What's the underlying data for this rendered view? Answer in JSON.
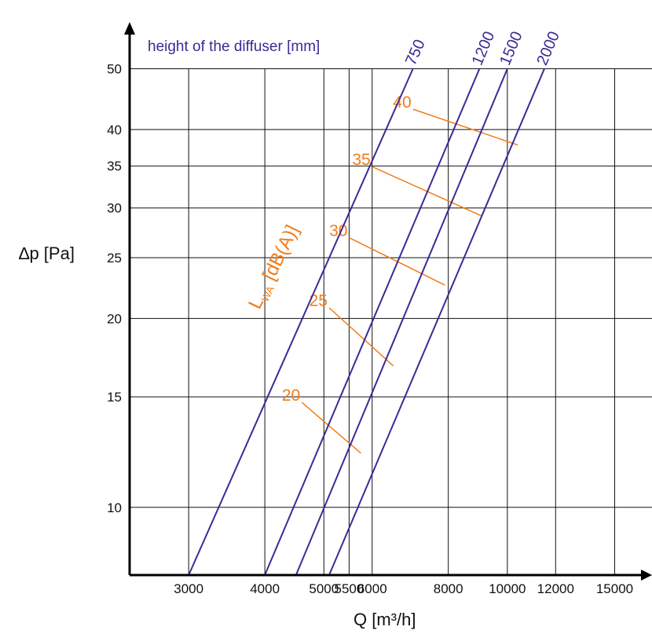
{
  "chart_data": {
    "type": "line",
    "xlabel": "Q [m³/h]",
    "ylabel": "∆p [Pa]",
    "legend_title": "height of the diffuser [mm]",
    "x_scale": "log",
    "y_scale": "log",
    "x_ticks": [
      3000,
      4000,
      5000,
      5500,
      6000,
      8000,
      10000,
      12000,
      15000
    ],
    "x_tick_labels": [
      "3000",
      "4000",
      "5000",
      "5500",
      "6000",
      "8000",
      "10000",
      "12000",
      "15000"
    ],
    "y_ticks": [
      10,
      15,
      20,
      25,
      30,
      35,
      40,
      50
    ],
    "y_tick_labels": [
      "10",
      "15",
      "20",
      "25",
      "30",
      "35",
      "40",
      "50"
    ],
    "xlim": [
      2400,
      15800
    ],
    "ylim": [
      7.8,
      58
    ],
    "grid": true,
    "series": [
      {
        "name": "750",
        "points": [
          [
            3000,
            7.8
          ],
          [
            7000,
            50
          ]
        ]
      },
      {
        "name": "1200",
        "points": [
          [
            4000,
            7.8
          ],
          [
            9000,
            50
          ]
        ]
      },
      {
        "name": "1500",
        "points": [
          [
            4500,
            7.8
          ],
          [
            10000,
            50
          ]
        ]
      },
      {
        "name": "2000",
        "points": [
          [
            5100,
            7.8
          ],
          [
            11500,
            50
          ]
        ]
      }
    ],
    "noise_title_main": "L",
    "noise_title_sub": "WA",
    "noise_title_unit": " [dB(A)]",
    "noise_lines": [
      {
        "label": "20",
        "points": [
          [
            4600,
            14.7
          ],
          [
            5750,
            12.2
          ]
        ]
      },
      {
        "label": "25",
        "points": [
          [
            5100,
            20.8
          ],
          [
            6500,
            16.8
          ]
        ]
      },
      {
        "label": "30",
        "points": [
          [
            5500,
            26.9
          ],
          [
            7900,
            22.6
          ]
        ]
      },
      {
        "label": "35",
        "points": [
          [
            6000,
            34.9
          ],
          [
            9100,
            29.1
          ]
        ]
      },
      {
        "label": "40",
        "points": [
          [
            7000,
            43.1
          ],
          [
            10400,
            37.8
          ]
        ]
      }
    ],
    "colors": {
      "series": "#3b2a96",
      "noise": "#f07d1a",
      "grid": "#111111",
      "axis": "#000000"
    }
  }
}
